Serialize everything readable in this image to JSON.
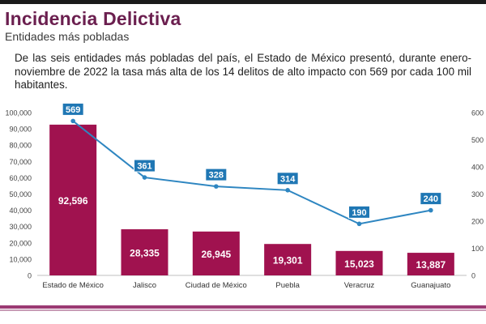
{
  "header": {
    "title": "Incidencia Delictiva",
    "subtitle": "Entidades más pobladas"
  },
  "description": "De las seis entidades más pobladas del país, el Estado de México presentó, durante enero-noviembre de 2022 la tasa más alta de los 14 delitos de alto impacto con 569 por cada 100 mil habitantes.",
  "colors": {
    "title": "#6b1f4f",
    "bar": "#a0124f",
    "line": "#2e86c1",
    "label_box": "#1f77b4"
  },
  "chart_data": {
    "type": "bar",
    "categories": [
      "Estado de México",
      "Jalisco",
      "Ciudad de México",
      "Puebla",
      "Veracruz",
      "Guanajuato"
    ],
    "series": [
      {
        "type": "bar",
        "axis": "left",
        "values": [
          92596,
          28335,
          26945,
          19301,
          15023,
          13887
        ],
        "labels": [
          "92,596",
          "28,335",
          "26,945",
          "19,301",
          "15,023",
          "13,887"
        ]
      },
      {
        "type": "line",
        "axis": "right",
        "values": [
          569,
          361,
          328,
          314,
          190,
          240
        ],
        "labels": [
          "569",
          "361",
          "328",
          "314",
          "190",
          "240"
        ]
      }
    ],
    "y_left": {
      "ylim": [
        0,
        100000
      ],
      "ticks": [
        "0",
        "10,000",
        "20,000",
        "30,000",
        "40,000",
        "50,000",
        "60,000",
        "70,000",
        "80,000",
        "90,000",
        "100,000"
      ]
    },
    "y_right": {
      "ylim": [
        0,
        600
      ],
      "ticks": [
        "0",
        "100",
        "200",
        "300",
        "400",
        "500",
        "600"
      ]
    },
    "grid": false
  }
}
